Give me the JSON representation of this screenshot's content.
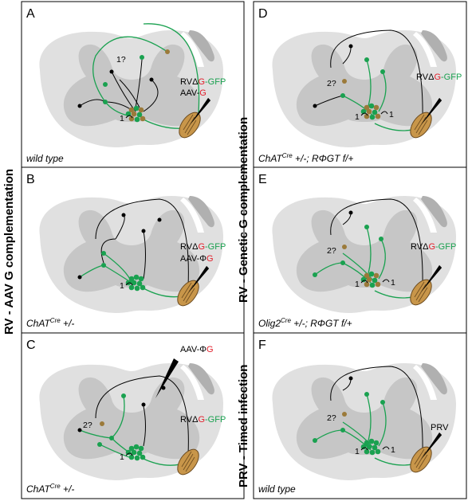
{
  "side_labels": {
    "left": "RV - AAV G complementation",
    "right_top": "RV - Genetic G complementation",
    "right_bottom": "PRV - Timed infection"
  },
  "panels": [
    {
      "letter": "A",
      "caption": "wild type",
      "caption_sup": "",
      "caption_tail": "",
      "vector1": [
        "RVΔ",
        "G",
        "-GFP"
      ],
      "vector2": [
        "AAV-",
        "G",
        ""
      ],
      "q_label": "1?",
      "num_left": "1",
      "num_right": ""
    },
    {
      "letter": "B",
      "caption": "ChAT",
      "caption_sup": "Cre",
      "caption_tail": " +/-",
      "vector1": [
        "RVΔ",
        "G",
        "-GFP"
      ],
      "vector2": [
        "AAV-Φ",
        "G",
        ""
      ],
      "q_label": "",
      "num_left": "1",
      "num_right": ""
    },
    {
      "letter": "C",
      "caption": "ChAT",
      "caption_sup": "Cre",
      "caption_tail": " +/-",
      "vector1": [
        "RVΔ",
        "G",
        "-GFP"
      ],
      "vector2": [
        "AAV-Φ",
        "G",
        ""
      ],
      "q_label": "2?",
      "num_left": "1",
      "num_right": ""
    },
    {
      "letter": "D",
      "caption": "ChAT",
      "caption_sup": "Cre",
      "caption_tail": " +/-; RΦGT f/+",
      "vector1": [
        "RVΔ",
        "G",
        "-GFP"
      ],
      "vector2": [
        "",
        "",
        ""
      ],
      "q_label": "2?",
      "num_left": "1",
      "num_right": "1"
    },
    {
      "letter": "E",
      "caption": "Olig2",
      "caption_sup": "Cre",
      "caption_tail": " +/-; RΦGT f/+",
      "vector1": [
        "RVΔ",
        "G",
        "-GFP"
      ],
      "vector2": [
        "",
        "",
        ""
      ],
      "q_label": "2?",
      "num_left": "1",
      "num_right": "1"
    },
    {
      "letter": "F",
      "caption": "wild type",
      "caption_sup": "",
      "caption_tail": "",
      "vector1": [
        "PRV",
        "",
        ""
      ],
      "vector2": [
        "",
        "",
        ""
      ],
      "q_label": "2?",
      "num_left": "1",
      "num_right": "1"
    }
  ],
  "colors": {
    "green": "#1aa150",
    "red": "#e2202c",
    "brown": "#9b7a3a",
    "drg": "#c8964a",
    "grey_outer": "#e0e0e0",
    "grey_inner": "#c6c6c6",
    "grey_dorsal": "#b2b2b2"
  }
}
